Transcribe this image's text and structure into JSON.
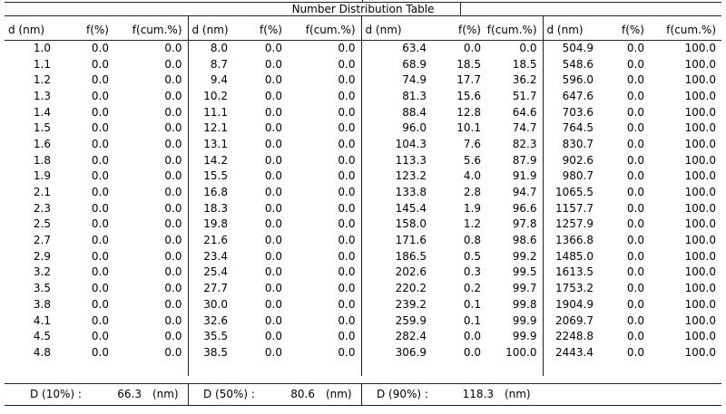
{
  "title": "Number Distribution Table",
  "columns": [
    "d (nm)",
    "f(%)",
    "f(cum.%)"
  ],
  "groups": [
    {
      "rows": [
        [
          "1.0",
          "0.0",
          "0.0"
        ],
        [
          "1.1",
          "0.0",
          "0.0"
        ],
        [
          "1.2",
          "0.0",
          "0.0"
        ],
        [
          "1.3",
          "0.0",
          "0.0"
        ],
        [
          "1.4",
          "0.0",
          "0.0"
        ],
        [
          "1.5",
          "0.0",
          "0.0"
        ],
        [
          "1.6",
          "0.0",
          "0.0"
        ],
        [
          "1.8",
          "0.0",
          "0.0"
        ],
        [
          "1.9",
          "0.0",
          "0.0"
        ],
        [
          "2.1",
          "0.0",
          "0.0"
        ],
        [
          "2.3",
          "0.0",
          "0.0"
        ],
        [
          "2.5",
          "0.0",
          "0.0"
        ],
        [
          "2.7",
          "0.0",
          "0.0"
        ],
        [
          "2.9",
          "0.0",
          "0.0"
        ],
        [
          "3.2",
          "0.0",
          "0.0"
        ],
        [
          "3.5",
          "0.0",
          "0.0"
        ],
        [
          "3.8",
          "0.0",
          "0.0"
        ],
        [
          "4.1",
          "0.0",
          "0.0"
        ],
        [
          "4.5",
          "0.0",
          "0.0"
        ],
        [
          "4.8",
          "0.0",
          "0.0"
        ]
      ]
    },
    {
      "rows": [
        [
          "8.0",
          "0.0",
          "0.0"
        ],
        [
          "8.7",
          "0.0",
          "0.0"
        ],
        [
          "9.4",
          "0.0",
          "0.0"
        ],
        [
          "10.2",
          "0.0",
          "0.0"
        ],
        [
          "11.1",
          "0.0",
          "0.0"
        ],
        [
          "12.1",
          "0.0",
          "0.0"
        ],
        [
          "13.1",
          "0.0",
          "0.0"
        ],
        [
          "14.2",
          "0.0",
          "0.0"
        ],
        [
          "15.5",
          "0.0",
          "0.0"
        ],
        [
          "16.8",
          "0.0",
          "0.0"
        ],
        [
          "18.3",
          "0.0",
          "0.0"
        ],
        [
          "19.8",
          "0.0",
          "0.0"
        ],
        [
          "21.6",
          "0.0",
          "0.0"
        ],
        [
          "23.4",
          "0.0",
          "0.0"
        ],
        [
          "25.4",
          "0.0",
          "0.0"
        ],
        [
          "27.7",
          "0.0",
          "0.0"
        ],
        [
          "30.0",
          "0.0",
          "0.0"
        ],
        [
          "32.6",
          "0.0",
          "0.0"
        ],
        [
          "35.5",
          "0.0",
          "0.0"
        ],
        [
          "38.5",
          "0.0",
          "0.0"
        ]
      ]
    },
    {
      "rows": [
        [
          "63.4",
          "0.0",
          "0.0"
        ],
        [
          "68.9",
          "18.5",
          "18.5"
        ],
        [
          "74.9",
          "17.7",
          "36.2"
        ],
        [
          "81.3",
          "15.6",
          "51.7"
        ],
        [
          "88.4",
          "12.8",
          "64.6"
        ],
        [
          "96.0",
          "10.1",
          "74.7"
        ],
        [
          "104.3",
          "7.6",
          "82.3"
        ],
        [
          "113.3",
          "5.6",
          "87.9"
        ],
        [
          "123.2",
          "4.0",
          "91.9"
        ],
        [
          "133.8",
          "2.8",
          "94.7"
        ],
        [
          "145.4",
          "1.9",
          "96.6"
        ],
        [
          "158.0",
          "1.2",
          "97.8"
        ],
        [
          "171.6",
          "0.8",
          "98.6"
        ],
        [
          "186.5",
          "0.5",
          "99.2"
        ],
        [
          "202.6",
          "0.3",
          "99.5"
        ],
        [
          "220.2",
          "0.2",
          "99.7"
        ],
        [
          "239.2",
          "0.1",
          "99.8"
        ],
        [
          "259.9",
          "0.1",
          "99.9"
        ],
        [
          "282.4",
          "0.0",
          "99.9"
        ],
        [
          "306.9",
          "0.0",
          "100.0"
        ]
      ]
    },
    {
      "rows": [
        [
          "504.9",
          "0.0",
          "100.0"
        ],
        [
          "548.6",
          "0.0",
          "100.0"
        ],
        [
          "596.0",
          "0.0",
          "100.0"
        ],
        [
          "647.6",
          "0.0",
          "100.0"
        ],
        [
          "703.6",
          "0.0",
          "100.0"
        ],
        [
          "764.5",
          "0.0",
          "100.0"
        ],
        [
          "830.7",
          "0.0",
          "100.0"
        ],
        [
          "902.6",
          "0.0",
          "100.0"
        ],
        [
          "980.7",
          "0.0",
          "100.0"
        ],
        [
          "1065.5",
          "0.0",
          "100.0"
        ],
        [
          "1157.7",
          "0.0",
          "100.0"
        ],
        [
          "1257.9",
          "0.0",
          "100.0"
        ],
        [
          "1366.8",
          "0.0",
          "100.0"
        ],
        [
          "1485.0",
          "0.0",
          "100.0"
        ],
        [
          "1613.5",
          "0.0",
          "100.0"
        ],
        [
          "1753.2",
          "0.0",
          "100.0"
        ],
        [
          "1904.9",
          "0.0",
          "100.0"
        ],
        [
          "2069.7",
          "0.0",
          "100.0"
        ],
        [
          "2248.8",
          "0.0",
          "100.0"
        ],
        [
          "2443.4",
          "0.0",
          "100.0"
        ]
      ]
    }
  ],
  "summary": [
    {
      "label": "D (10%) :",
      "value": "66.3",
      "unit": "(nm)"
    },
    {
      "label": "D (50%) :",
      "value": "80.6",
      "unit": "(nm)"
    },
    {
      "label": "D (90%) :",
      "value": "118.3",
      "unit": "(nm)"
    }
  ]
}
